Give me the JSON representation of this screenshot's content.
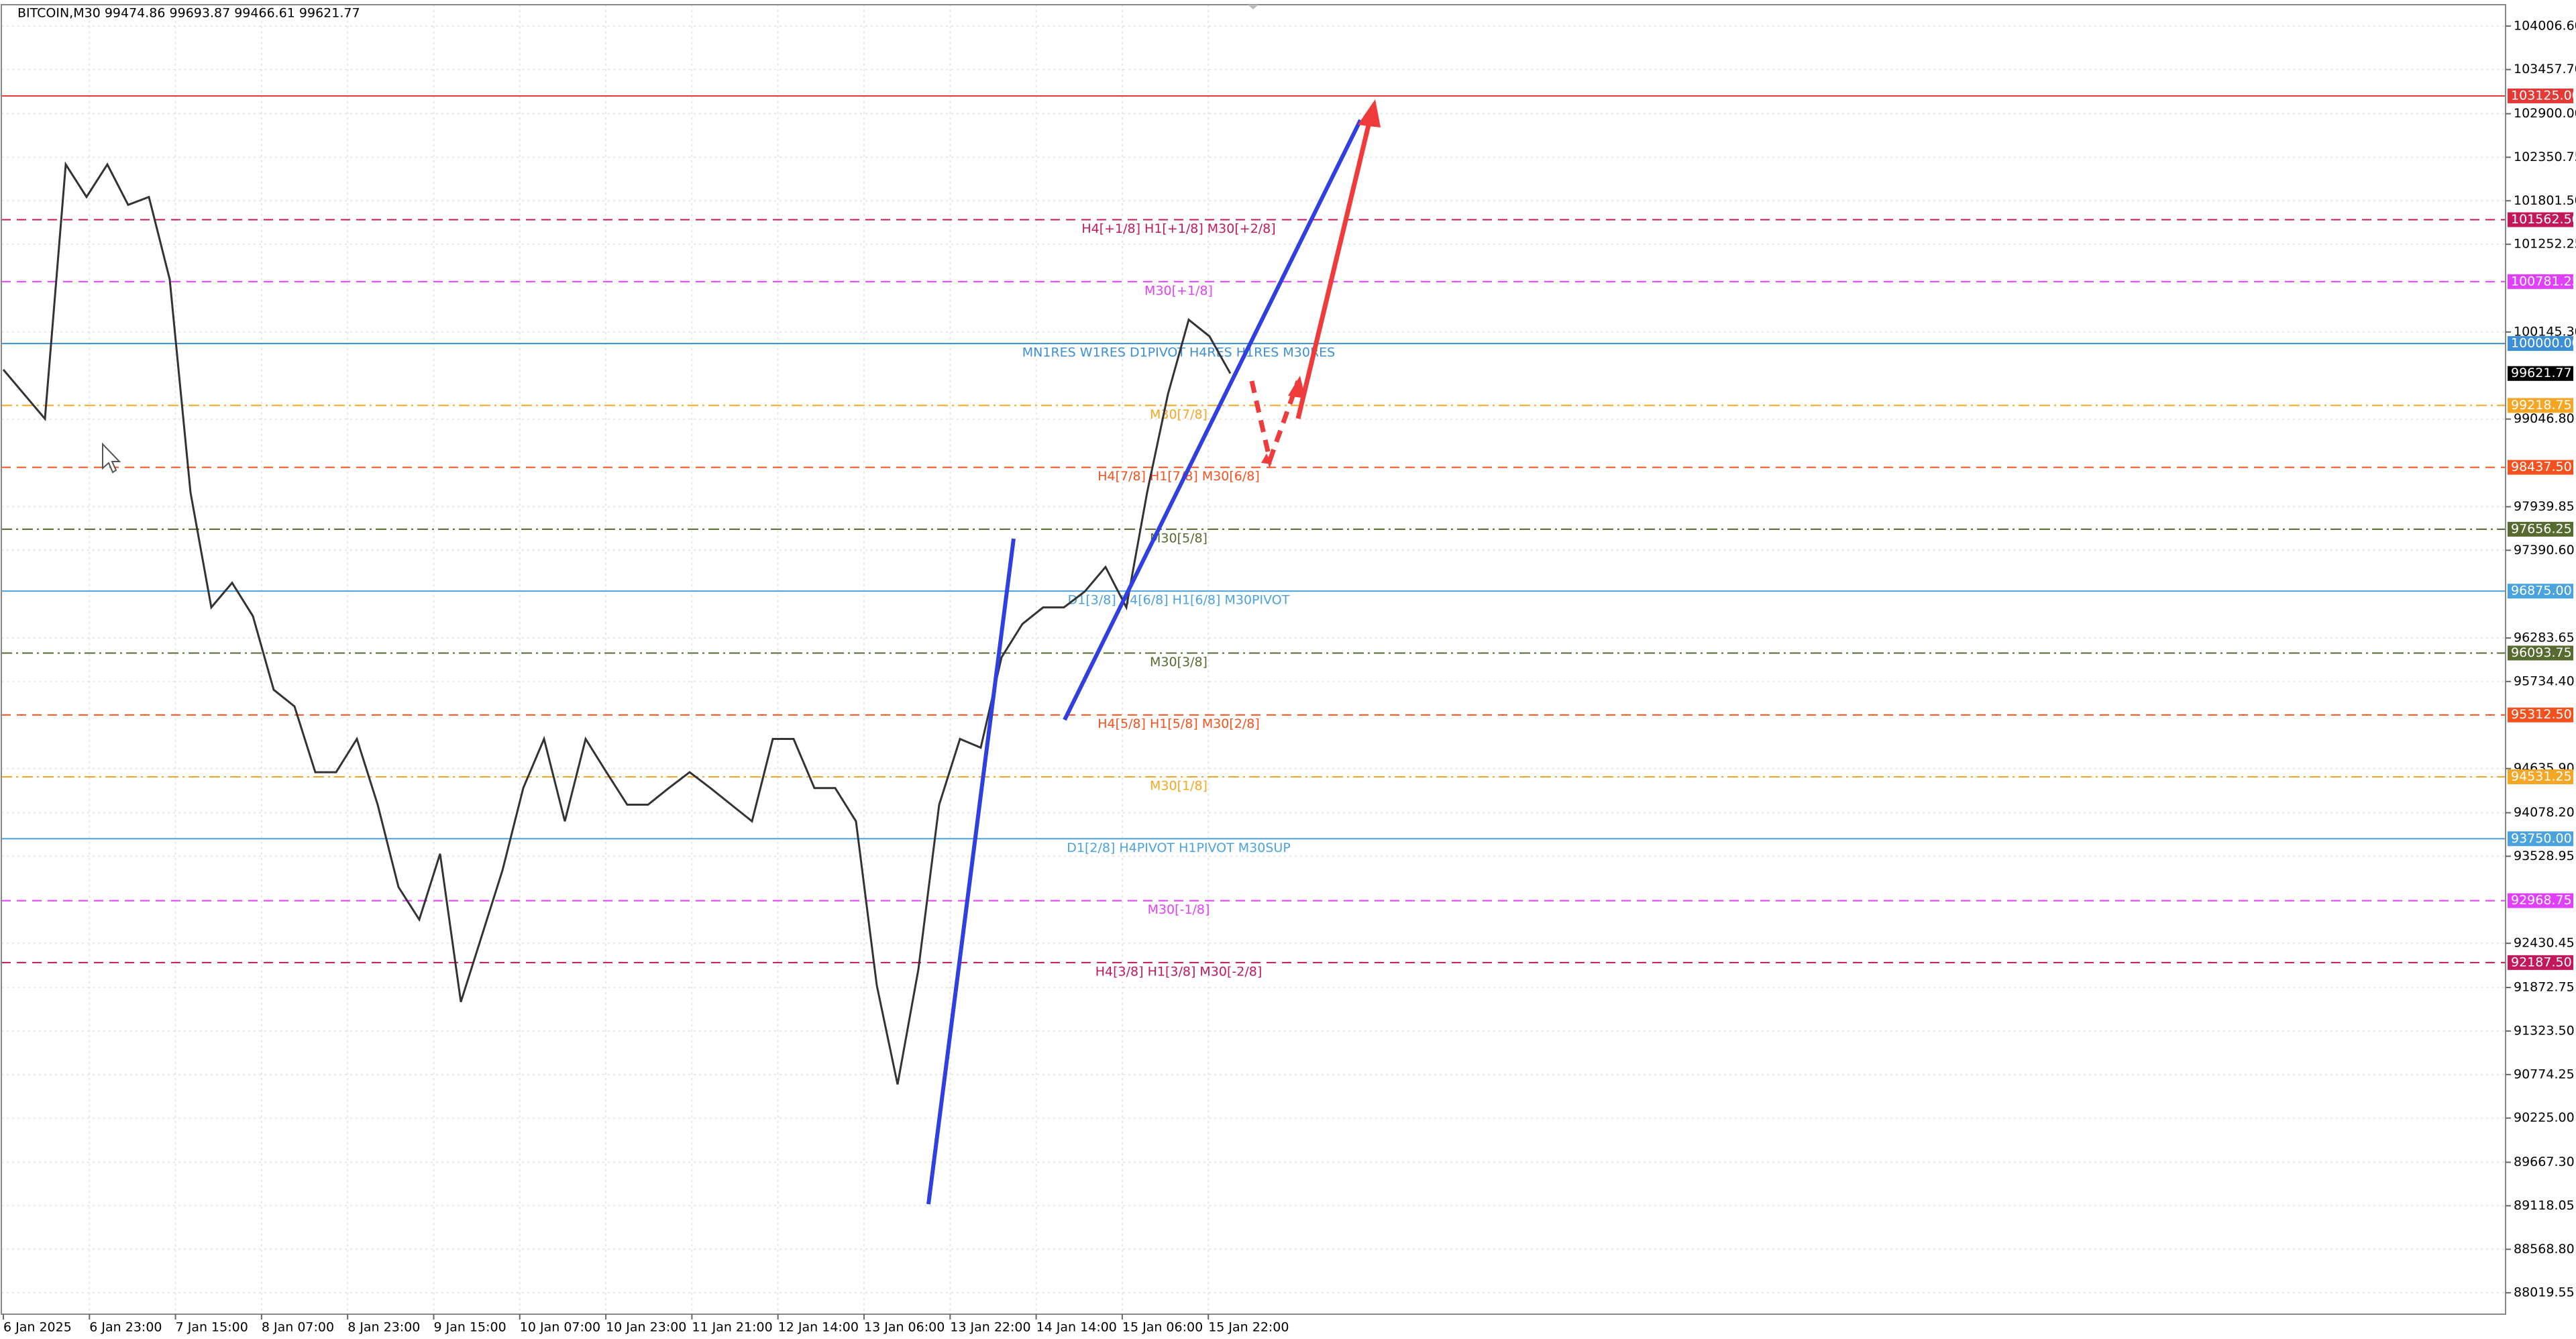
{
  "chart_data": {
    "type": "line",
    "title": "BITCOIN,M30  99474.86 99693.87 99466.61 99621.77",
    "ylim": [
      87750,
      104276
    ],
    "yticks": [
      {
        "value": 104006.6,
        "label": "104006.60"
      },
      {
        "value": 103457.7,
        "label": "103457.70"
      },
      {
        "value": 102900,
        "label": "102900.00"
      },
      {
        "value": 102350.75,
        "label": "102350.75"
      },
      {
        "value": 101801.5,
        "label": "101801.50"
      },
      {
        "value": 101252.25,
        "label": "101252.25"
      },
      {
        "value": 100145.3,
        "label": "100145.30"
      },
      {
        "value": 99046.8,
        "label": "99046.80"
      },
      {
        "value": 97939.85,
        "label": "97939.85"
      },
      {
        "value": 97390.6,
        "label": "97390.60"
      },
      {
        "value": 96283.65,
        "label": "96283.65"
      },
      {
        "value": 95734.4,
        "label": "95734.40"
      },
      {
        "value": 94635.9,
        "label": "94635.90"
      },
      {
        "value": 94078.2,
        "label": "94078.20"
      },
      {
        "value": 93528.95,
        "label": "93528.95"
      },
      {
        "value": 92430.45,
        "label": "92430.45"
      },
      {
        "value": 91872.75,
        "label": "91872.75"
      },
      {
        "value": 91323.5,
        "label": "91323.50"
      },
      {
        "value": 90774.25,
        "label": "90774.25"
      },
      {
        "value": 90225,
        "label": "90225.00"
      },
      {
        "value": 89667.3,
        "label": "89667.30"
      },
      {
        "value": 89118.05,
        "label": "89118.05"
      },
      {
        "value": 88568.8,
        "label": "88568.80"
      },
      {
        "value": 88019.55,
        "label": "88019.55"
      }
    ],
    "xtick_labels": [
      "6 Jan 2025",
      "6 Jan 23:00",
      "7 Jan 15:00",
      "8 Jan 07:00",
      "8 Jan 23:00",
      "9 Jan 15:00",
      "10 Jan 07:00",
      "10 Jan 23:00",
      "11 Jan 21:00",
      "12 Jan 14:00",
      "13 Jan 06:00",
      "13 Jan 22:00",
      "14 Jan 14:00",
      "15 Jan 06:00",
      "15 Jan 22:00"
    ],
    "grid": true,
    "series": [
      {
        "name": "BITCOIN,M30",
        "color": "#333333",
        "values": [
          99670,
          99360,
          99050,
          102260,
          101850,
          102260,
          101750,
          101850,
          100810,
          98120,
          96670,
          96980,
          96560,
          95630,
          95420,
          94590,
          94590,
          95010,
          94180,
          93140,
          92730,
          93560,
          91690,
          92520,
          93350,
          94390,
          95010,
          93970,
          95010,
          94590,
          94180,
          94180,
          94390,
          94590,
          94390,
          94180,
          93970,
          95010,
          95010,
          94390,
          94390,
          93970,
          91900,
          90650,
          92100,
          94180,
          95010,
          94900,
          96040,
          96460,
          96670,
          96670,
          96870,
          97180,
          96670,
          98120,
          99360,
          100300,
          100090,
          99621.77
        ]
      }
    ],
    "levels": [
      {
        "value": 103125,
        "value_label": "103125.00",
        "color": "#e53935",
        "style": "solid"
      },
      {
        "value": 101562.5,
        "value_label": "101562.50",
        "color": "#c2185b",
        "style": "dash",
        "text": "H4[+1/8] H1[+1/8] M30[+2/8]"
      },
      {
        "value": 100781.25,
        "value_label": "100781.25",
        "color": "#e040fb",
        "style": "dash",
        "text": "M30[+1/8]"
      },
      {
        "value": 100000,
        "value_label": "100000.00",
        "color": "#3c8fd6",
        "style": "solid",
        "text": "MN1RES W1RES D1PIVOT H4RES H1RES M30RES"
      },
      {
        "value": 99621.77,
        "value_label": "99621.77",
        "color": "#000000",
        "style": "none"
      },
      {
        "value": 99218.75,
        "value_label": "99218.75",
        "color": "#f5a623",
        "style": "dashdot",
        "text": "M30[7/8]"
      },
      {
        "value": 98437.5,
        "value_label": "98437.50",
        "color": "#f4511e",
        "style": "dash",
        "text": "H4[7/8] H1[7/8] M30[6/8]"
      },
      {
        "value": 97656.25,
        "value_label": "97656.25",
        "color": "#556b2f",
        "style": "dashdot",
        "text": "M30[5/8]"
      },
      {
        "value": 96875,
        "value_label": "96875.00",
        "color": "#4aa3df",
        "style": "solid",
        "text": "D1[3/8] H4[6/8] H1[6/8] M30PIVOT"
      },
      {
        "value": 96093.75,
        "value_label": "96093.75",
        "color": "#556b2f",
        "style": "dashdot",
        "text": "M30[3/8]"
      },
      {
        "value": 95312.5,
        "value_label": "95312.50",
        "color": "#f4511e",
        "style": "dash",
        "text": "H4[5/8] H1[5/8] M30[2/8]"
      },
      {
        "value": 94531.25,
        "value_label": "94531.25",
        "color": "#f5a623",
        "style": "dashdot",
        "text": "M30[1/8]"
      },
      {
        "value": 93750,
        "value_label": "93750.00",
        "color": "#4aa3df",
        "style": "solid",
        "text": "D1[2/8] H4PIVOT H1PIVOT M30SUP"
      },
      {
        "value": 92968.75,
        "value_label": "92968.75",
        "color": "#e040fb",
        "style": "dash",
        "text": "M30[-1/8]"
      },
      {
        "value": 92187.5,
        "value_label": "92187.50",
        "color": "#c2185b",
        "style": "dash",
        "text": "H4[3/8] H1[3/8] M30[-2/8]"
      }
    ]
  }
}
